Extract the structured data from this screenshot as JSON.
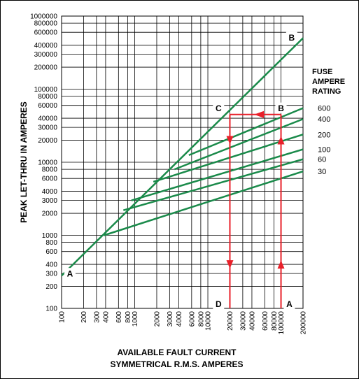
{
  "chart_data": {
    "type": "line",
    "scale": "log-log",
    "xlabel": [
      "AVAILABLE FAULT CURRENT",
      "SYMMETRICAL R.M.S. AMPERES"
    ],
    "ylabel": "PEAK LET-THRU IN AMPERES",
    "xlim": [
      100,
      200000
    ],
    "ylim": [
      100,
      1000000
    ],
    "grid": true,
    "x_ticks": [
      {
        "value": 100,
        "label": "100"
      },
      {
        "value": 200,
        "label": "200"
      },
      {
        "value": 300,
        "label": "300"
      },
      {
        "value": 400,
        "label": "400"
      },
      {
        "value": 600,
        "label": "600"
      },
      {
        "value": 800,
        "label": "800"
      },
      {
        "value": 1000,
        "label": "1000"
      },
      {
        "value": 2000,
        "label": "2000"
      },
      {
        "value": 3000,
        "label": "3000"
      },
      {
        "value": 4000,
        "label": "4000"
      },
      {
        "value": 6000,
        "label": "6000"
      },
      {
        "value": 8000,
        "label": "8000"
      },
      {
        "value": 10000,
        "label": "10000"
      },
      {
        "value": 20000,
        "label": "20000"
      },
      {
        "value": 30000,
        "label": "30000"
      },
      {
        "value": 40000,
        "label": "40000"
      },
      {
        "value": 60000,
        "label": "60000"
      },
      {
        "value": 80000,
        "label": "80000"
      },
      {
        "value": 100000,
        "label": "100000"
      },
      {
        "value": 200000,
        "label": "200000"
      }
    ],
    "y_ticks": [
      {
        "value": 100,
        "label": "100"
      },
      {
        "value": 200,
        "label": "200"
      },
      {
        "value": 300,
        "label": "300"
      },
      {
        "value": 400,
        "label": "400"
      },
      {
        "value": 600,
        "label": "600"
      },
      {
        "value": 800,
        "label": "800"
      },
      {
        "value": 1000,
        "label": "1000"
      },
      {
        "value": 2000,
        "label": "2000"
      },
      {
        "value": 3000,
        "label": "3000"
      },
      {
        "value": 4000,
        "label": "4000"
      },
      {
        "value": 6000,
        "label": "6000"
      },
      {
        "value": 8000,
        "label": "8000"
      },
      {
        "value": 10000,
        "label": "10000"
      },
      {
        "value": 20000,
        "label": "20000"
      },
      {
        "value": 30000,
        "label": "30000"
      },
      {
        "value": 40000,
        "label": "40000"
      },
      {
        "value": 60000,
        "label": "60000"
      },
      {
        "value": 80000,
        "label": "80000"
      },
      {
        "value": 100000,
        "label": "100000"
      },
      {
        "value": 200000,
        "label": "200000"
      },
      {
        "value": 300000,
        "label": "300000"
      },
      {
        "value": 400000,
        "label": "400000"
      },
      {
        "value": 600000,
        "label": "600000"
      },
      {
        "value": 800000,
        "label": "800000"
      },
      {
        "value": 1000000,
        "label": "1000000"
      }
    ],
    "legend_title": [
      "FUSE",
      "AMPERE",
      "RATING"
    ],
    "series": [
      {
        "name": "A-B",
        "color": "#1a8a4a",
        "points": [
          [
            100,
            280
          ],
          [
            200000,
            500000
          ]
        ]
      },
      {
        "name": "600",
        "color": "#1a8a4a",
        "points": [
          [
            5500,
            12500
          ],
          [
            200000,
            55000
          ]
        ]
      },
      {
        "name": "400",
        "color": "#1a8a4a",
        "points": [
          [
            3500,
            8000
          ],
          [
            200000,
            39000
          ]
        ]
      },
      {
        "name": "200",
        "color": "#1a8a4a",
        "points": [
          [
            1800,
            5400
          ],
          [
            200000,
            24000
          ]
        ]
      },
      {
        "name": "100",
        "color": "#1a8a4a",
        "points": [
          [
            900,
            3000
          ],
          [
            200000,
            15000
          ]
        ]
      },
      {
        "name": "60",
        "color": "#1a8a4a",
        "points": [
          [
            700,
            2200
          ],
          [
            200000,
            11000
          ]
        ]
      },
      {
        "name": "30",
        "color": "#1a8a4a",
        "points": [
          [
            380,
            1000
          ],
          [
            200000,
            7500
          ]
        ]
      }
    ],
    "annotations": {
      "letters": [
        {
          "text": "A",
          "x": 130,
          "y": 300
        },
        {
          "text": "A",
          "x": 130000,
          "y": 115
        },
        {
          "text": "B",
          "x": 140000,
          "y": 510000
        },
        {
          "text": "B",
          "x": 100000,
          "y": 55000
        },
        {
          "text": "C",
          "x": 14000,
          "y": 55000
        },
        {
          "text": "D",
          "x": 14000,
          "y": 115
        }
      ],
      "arrow_color": "#e8202a",
      "arrows": [
        {
          "name": "A-to-B-vertical",
          "points": [
            [
              100000,
              100
            ],
            [
              100000,
              45000
            ]
          ],
          "heads_at_y": [
            400,
            20000
          ]
        },
        {
          "name": "B-to-C-horizontal",
          "points": [
            [
              100000,
              45000
            ],
            [
              20000,
              45000
            ]
          ],
          "heads_at_x": [
            50000
          ]
        },
        {
          "name": "C-to-D-vertical",
          "points": [
            [
              20000,
              45000
            ],
            [
              20000,
              100
            ]
          ],
          "heads_at_y": [
            20000,
            400
          ]
        }
      ]
    }
  }
}
